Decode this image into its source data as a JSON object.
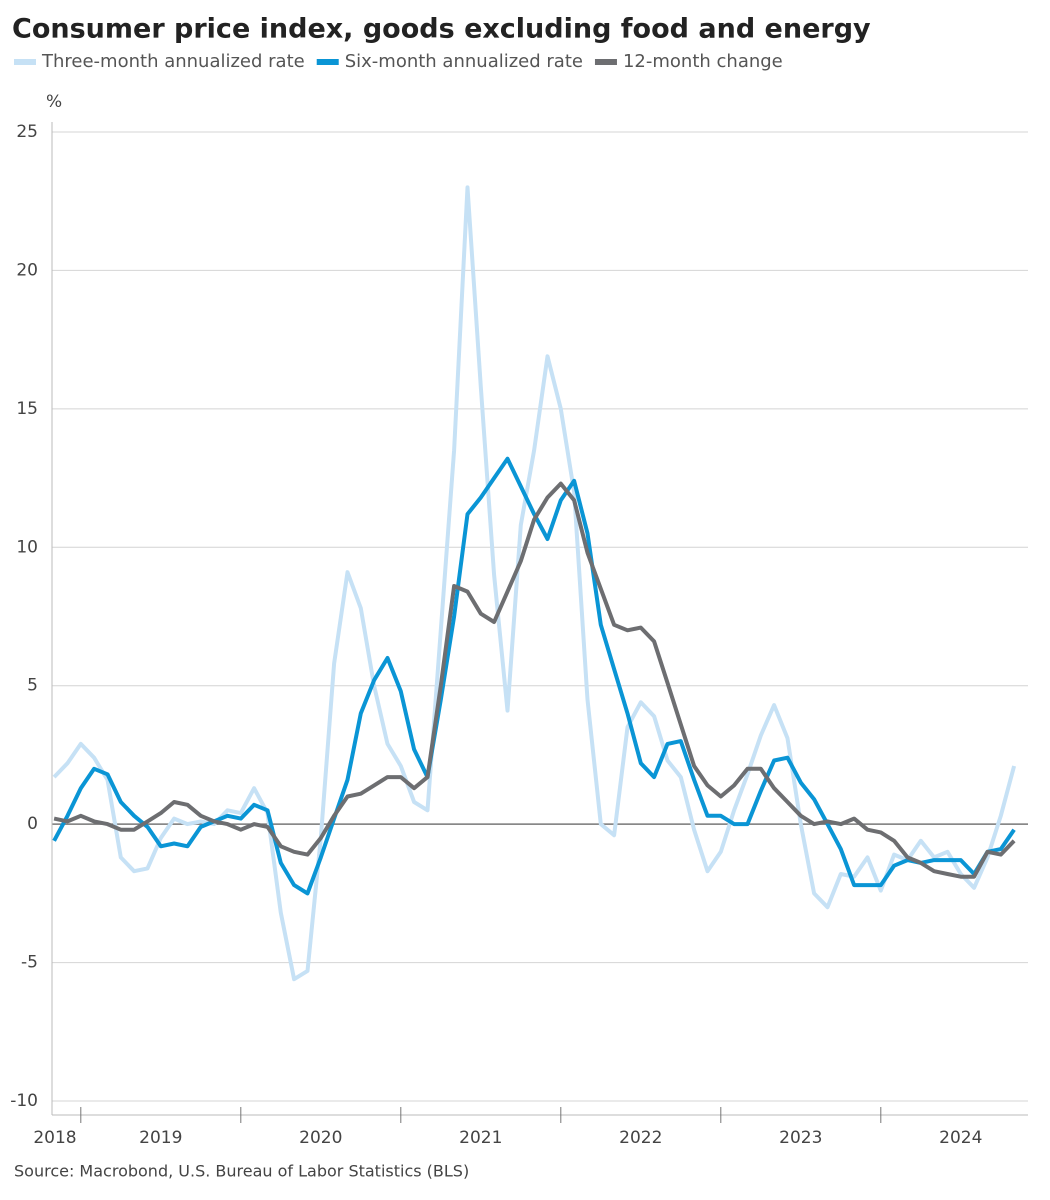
{
  "chart_data": {
    "type": "line",
    "title": "Consumer price index, goods excluding food and energy",
    "y_label": "%",
    "source": "Source: Macrobond, U.S. Bureau of Labor Statistics (BLS)",
    "x": [
      2018.833,
      2018.917,
      2019,
      2019.083,
      2019.167,
      2019.25,
      2019.333,
      2019.417,
      2019.5,
      2019.583,
      2019.667,
      2019.75,
      2019.833,
      2019.917,
      2020,
      2020.083,
      2020.167,
      2020.25,
      2020.333,
      2020.417,
      2020.5,
      2020.583,
      2020.667,
      2020.75,
      2020.833,
      2020.917,
      2021,
      2021.083,
      2021.167,
      2021.25,
      2021.333,
      2021.417,
      2021.5,
      2021.583,
      2021.667,
      2021.75,
      2021.833,
      2021.917,
      2022,
      2022.083,
      2022.167,
      2022.25,
      2022.333,
      2022.417,
      2022.5,
      2022.583,
      2022.667,
      2022.75,
      2022.833,
      2022.917,
      2023,
      2023.083,
      2023.167,
      2023.25,
      2023.333,
      2023.417,
      2023.5,
      2023.583,
      2023.667,
      2023.75,
      2023.833,
      2023.917,
      2024,
      2024.083,
      2024.167,
      2024.25,
      2024.333,
      2024.417,
      2024.5,
      2024.583,
      2024.667,
      2024.75,
      2024.833
    ],
    "series": [
      {
        "name": "Three-month annualized rate",
        "color": "#c6e1f5",
        "values": [
          1.7,
          2.2,
          2.9,
          2.4,
          1.6,
          -1.2,
          -1.7,
          -1.6,
          -0.5,
          0.2,
          0.0,
          0.1,
          0.0,
          0.5,
          0.4,
          1.3,
          0.4,
          -3.2,
          -5.6,
          -5.3,
          -0.5,
          5.8,
          9.1,
          7.8,
          5.0,
          2.9,
          2.1,
          0.8,
          0.5,
          7.0,
          13.5,
          23.0,
          15.8,
          9.0,
          4.1,
          10.8,
          13.5,
          16.9,
          15.0,
          12.0,
          4.5,
          0.0,
          -0.4,
          3.5,
          4.4,
          3.9,
          2.3,
          1.7,
          -0.2,
          -1.7,
          -1.0,
          0.5,
          1.8,
          3.2,
          4.3,
          3.1,
          0.0,
          -2.5,
          -3.0,
          -1.8,
          -1.9,
          -1.2,
          -2.4,
          -1.1,
          -1.3,
          -0.6,
          -1.2,
          -1.0,
          -1.8,
          -2.3,
          -1.2,
          0.3,
          2.1
        ]
      },
      {
        "name": "Six-month annualized rate",
        "color": "#0a95d5",
        "values": [
          -0.6,
          0.3,
          1.3,
          2.0,
          1.8,
          0.8,
          0.3,
          -0.1,
          -0.8,
          -0.7,
          -0.8,
          -0.1,
          0.1,
          0.3,
          0.2,
          0.7,
          0.5,
          -1.4,
          -2.2,
          -2.5,
          -1.2,
          0.2,
          1.6,
          4.0,
          5.2,
          6.0,
          4.8,
          2.7,
          1.7,
          4.5,
          7.5,
          11.2,
          11.8,
          12.5,
          13.2,
          12.2,
          11.2,
          10.3,
          11.7,
          12.4,
          10.5,
          7.2,
          5.6,
          4.0,
          2.2,
          1.7,
          2.9,
          3.0,
          1.6,
          0.3,
          0.3,
          0.0,
          0.0,
          1.2,
          2.3,
          2.4,
          1.5,
          0.9,
          0.0,
          -0.9,
          -2.2,
          -2.2,
          -2.2,
          -1.5,
          -1.3,
          -1.4,
          -1.3,
          -1.3,
          -1.3,
          -1.8,
          -1.0,
          -0.9,
          -0.2
        ]
      },
      {
        "name": "12-month change",
        "color": "#6d6e71",
        "values": [
          0.2,
          0.1,
          0.3,
          0.1,
          0.0,
          -0.2,
          -0.2,
          0.1,
          0.4,
          0.8,
          0.7,
          0.3,
          0.1,
          0.0,
          -0.2,
          0.0,
          -0.1,
          -0.8,
          -1.0,
          -1.1,
          -0.5,
          0.3,
          1.0,
          1.1,
          1.4,
          1.7,
          1.7,
          1.3,
          1.7,
          5.0,
          8.6,
          8.4,
          7.6,
          7.3,
          8.4,
          9.5,
          11.0,
          11.8,
          12.3,
          11.7,
          9.8,
          8.5,
          7.2,
          7.0,
          7.1,
          6.6,
          5.1,
          3.6,
          2.1,
          1.4,
          1.0,
          1.4,
          2.0,
          2.0,
          1.3,
          0.8,
          0.3,
          0.0,
          0.1,
          0.0,
          0.2,
          -0.2,
          -0.3,
          -0.6,
          -1.2,
          -1.4,
          -1.7,
          -1.8,
          -1.9,
          -1.9,
          -1.0,
          -1.1,
          -0.6
        ]
      }
    ],
    "xlim": [
      2018.82,
      2024.92
    ],
    "xticks": [
      2019,
      2020,
      2021,
      2022,
      2023,
      2024
    ],
    "x_labels": [
      2018,
      2019,
      2020,
      2021,
      2022,
      2023,
      2024
    ],
    "ylim": [
      -10,
      25
    ],
    "yticks": [
      -10,
      -5,
      0,
      5,
      10,
      15,
      20,
      25
    ],
    "grid": true
  }
}
